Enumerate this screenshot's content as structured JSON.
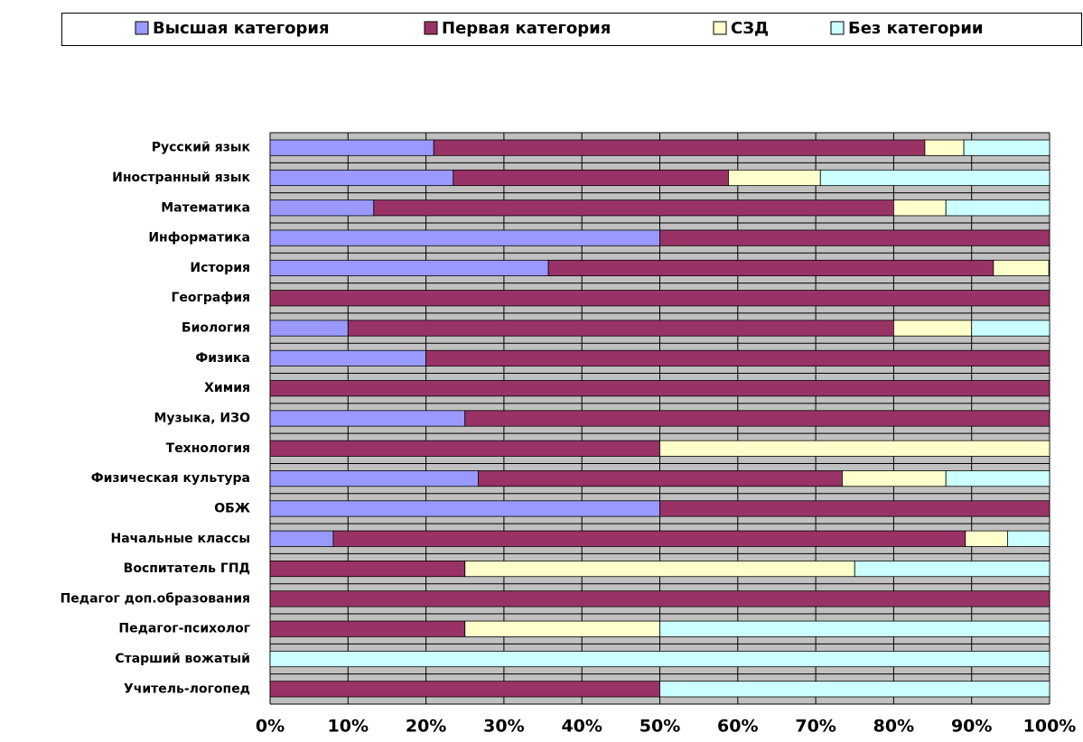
{
  "chart_data": {
    "type": "stacked_bar_horizontal",
    "categories": [
      "Русский язык",
      "Иностранный язык",
      "Математика",
      "Информатика",
      "История",
      "География",
      "Биология",
      "Физика",
      "Химия",
      "Музыка, ИЗО",
      "Технология",
      "Физическая культура",
      "ОБЖ",
      "Начальные классы",
      "Воспитатель ГПД",
      "Педагог доп.образования",
      "Педагог-психолог",
      "Старший вожатый",
      "Учитель-логопед"
    ],
    "series": [
      {
        "name": "Высшая категория",
        "color": "#9999ff",
        "values": [
          21,
          23.5,
          13.3,
          50,
          35.7,
          0,
          10,
          20,
          0,
          25,
          0,
          26.7,
          50,
          8.1,
          0,
          0,
          0,
          0,
          0
        ]
      },
      {
        "name": "Первая категория",
        "color": "#993366",
        "values": [
          63,
          35.3,
          66.7,
          50,
          57.1,
          100,
          70,
          80,
          100,
          75,
          50,
          46.7,
          50,
          81.1,
          25,
          100,
          25,
          0,
          50
        ]
      },
      {
        "name": "СЗД",
        "color": "#ffffcc",
        "values": [
          5,
          11.8,
          6.7,
          0,
          7.1,
          0,
          10,
          0,
          0,
          0,
          50,
          13.3,
          0,
          5.4,
          50,
          0,
          25,
          0,
          0
        ]
      },
      {
        "name": "Без категории",
        "color": "#ccffff",
        "values": [
          11,
          29.4,
          13.3,
          0,
          0,
          0,
          10,
          0,
          0,
          0,
          0,
          13.3,
          0,
          5.4,
          25,
          0,
          50,
          100,
          50
        ]
      }
    ],
    "xlim": [
      0,
      100
    ],
    "xticks": [
      {
        "value": 0,
        "label": "0%"
      },
      {
        "value": 10,
        "label": "10%"
      },
      {
        "value": 20,
        "label": "20%"
      },
      {
        "value": 30,
        "label": "30%"
      },
      {
        "value": 40,
        "label": "40%"
      },
      {
        "value": 50,
        "label": "50%"
      },
      {
        "value": 60,
        "label": "60%"
      },
      {
        "value": 70,
        "label": "70%"
      },
      {
        "value": 80,
        "label": "80%"
      },
      {
        "value": 90,
        "label": "90%"
      },
      {
        "value": 100,
        "label": "100%"
      }
    ],
    "grid": true,
    "legend": "top"
  }
}
